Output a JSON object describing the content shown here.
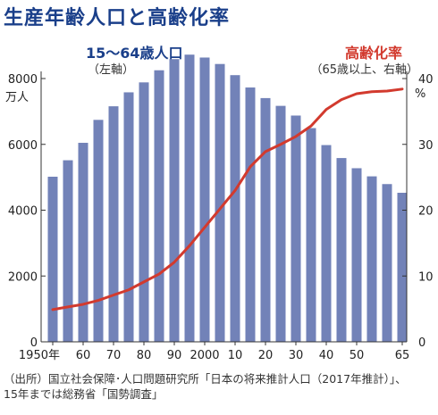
{
  "title": "生産年齢人口と高齢化率",
  "chart_data": {
    "type": "bar+line",
    "title": "生産年齢人口と高齢化率",
    "series": [
      {
        "name": "15〜64歳人口",
        "axis_note": "（左軸）",
        "type": "bar",
        "unit": "万人",
        "color": "#7282b8",
        "x": [
          1950,
          1955,
          1960,
          1965,
          1970,
          1975,
          1980,
          1985,
          1990,
          1995,
          2000,
          2005,
          2010,
          2015,
          2020,
          2025,
          2030,
          2035,
          2040,
          2045,
          2050,
          2055,
          2060,
          2065
        ],
        "values": [
          5017,
          5517,
          6047,
          6744,
          7157,
          7581,
          7883,
          8251,
          8590,
          8726,
          8638,
          8442,
          8103,
          7728,
          7406,
          7170,
          6875,
          6494,
          5978,
          5584,
          5275,
          5028,
          4793,
          4529
        ]
      },
      {
        "name": "高齢化率",
        "axis_note": "（65歳以上、右軸）",
        "type": "line",
        "unit": "%",
        "color": "#d23a2e",
        "x": [
          1950,
          1955,
          1960,
          1965,
          1970,
          1975,
          1980,
          1985,
          1990,
          1995,
          2000,
          2005,
          2010,
          2015,
          2020,
          2025,
          2030,
          2035,
          2040,
          2045,
          2050,
          2055,
          2060,
          2065
        ],
        "values": [
          4.9,
          5.3,
          5.7,
          6.3,
          7.1,
          7.9,
          9.1,
          10.3,
          12.1,
          14.6,
          17.4,
          20.2,
          23.0,
          26.6,
          28.9,
          30.0,
          31.2,
          32.8,
          35.3,
          36.8,
          37.7,
          38.0,
          38.1,
          38.4
        ]
      }
    ],
    "x_tick_labels": [
      {
        "x": 1950,
        "label": "1950年"
      },
      {
        "x": 1960,
        "label": "60"
      },
      {
        "x": 1970,
        "label": "70"
      },
      {
        "x": 1980,
        "label": "80"
      },
      {
        "x": 1990,
        "label": "90"
      },
      {
        "x": 2000,
        "label": "2000"
      },
      {
        "x": 2010,
        "label": "10"
      },
      {
        "x": 2020,
        "label": "20"
      },
      {
        "x": 2030,
        "label": "30"
      },
      {
        "x": 2040,
        "label": "40"
      },
      {
        "x": 2050,
        "label": "50"
      },
      {
        "x": 2065,
        "label": "65"
      }
    ],
    "y_left": {
      "unit": "万人",
      "range": [
        0,
        8000
      ],
      "ticks": [
        0,
        2000,
        4000,
        6000,
        8000
      ]
    },
    "y_right": {
      "unit": "%",
      "range": [
        0,
        40
      ],
      "ticks": [
        0,
        10,
        20,
        30,
        40
      ]
    },
    "grid": false
  },
  "source": {
    "line1": "（出所）国立社会保障･人口問題研究所「日本の将来推計人口（2017年推計）」、",
    "line2": "15年までは総務省「国勢調査」"
  }
}
